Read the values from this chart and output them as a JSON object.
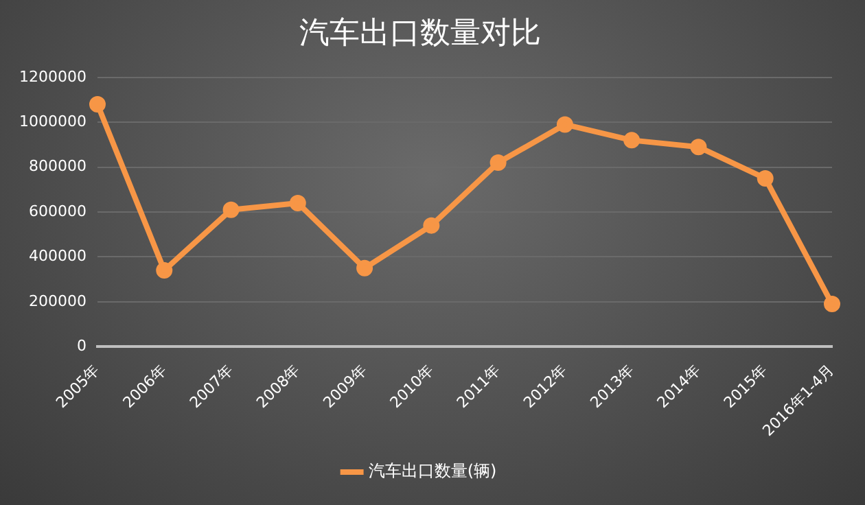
{
  "chart_data": {
    "type": "line",
    "title": "汽车出口数量对比",
    "categories": [
      "2005年",
      "2006年",
      "2007年",
      "2008年",
      "2009年",
      "2010年",
      "2011年",
      "2012年",
      "2013年",
      "2014年",
      "2015年",
      "2016年1-4月"
    ],
    "series": [
      {
        "name": "汽车出口数量(辆)",
        "color": "#f79646",
        "values": [
          1080000,
          340000,
          610000,
          640000,
          350000,
          540000,
          820000,
          990000,
          920000,
          890000,
          750000,
          190000
        ]
      }
    ],
    "ylim": [
      0,
      1200000
    ],
    "yticks": [
      0,
      200000,
      400000,
      600000,
      800000,
      1000000,
      1200000
    ],
    "grid": "y",
    "legend": "bottom",
    "marker": "circle",
    "line_style": "solid"
  }
}
